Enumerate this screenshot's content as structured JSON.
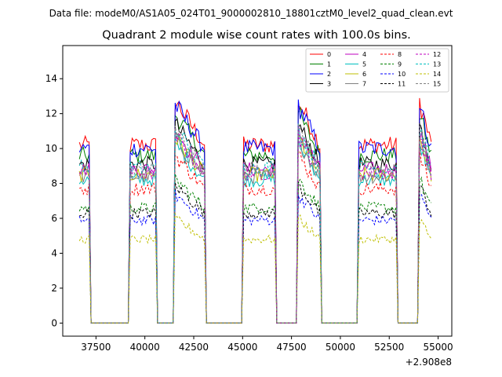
{
  "suptitle": "Data file: modeM0/AS1A05_024T01_9000002810_18801cztM0_level2_quad_clean.evt",
  "chart_data": {
    "type": "line",
    "title": "Quadrant 2 module wise count rates with 100.0s bins.",
    "xlabel": "",
    "ylabel": "",
    "x_offset_label": "+2.908e8",
    "xlim": [
      35800,
      55700
    ],
    "ylim": [
      -0.75,
      15.9
    ],
    "xticks": [
      37500,
      40000,
      42500,
      45000,
      47500,
      50000,
      52500,
      55000
    ],
    "xtick_labels": [
      "37500",
      "40000",
      "42500",
      "45000",
      "47500",
      "50000",
      "52500",
      "55000"
    ],
    "yticks": [
      0,
      2,
      4,
      6,
      8,
      10,
      12,
      14
    ],
    "ytick_labels": [
      "0",
      "2",
      "4",
      "6",
      "8",
      "10",
      "12",
      "14"
    ],
    "legend_position": "top-right",
    "segments": [
      {
        "start": 36650,
        "end": 37150
      },
      {
        "start": 39250,
        "end": 40550
      },
      {
        "start": 41550,
        "end": 43050
      },
      {
        "start": 45050,
        "end": 46650
      },
      {
        "start": 47850,
        "end": 48950
      },
      {
        "start": 50950,
        "end": 52850
      },
      {
        "start": 54050,
        "end": 54650
      }
    ],
    "series": [
      {
        "name": "0",
        "color": "#ff0000",
        "dash": false,
        "level": 10.2
      },
      {
        "name": "1",
        "color": "#008000",
        "dash": false,
        "level": 9.6
      },
      {
        "name": "2",
        "color": "#0000ff",
        "dash": false,
        "level": 10.0
      },
      {
        "name": "3",
        "color": "#000000",
        "dash": false,
        "level": 9.1
      },
      {
        "name": "4",
        "color": "#bf00bf",
        "dash": false,
        "level": 8.8
      },
      {
        "name": "5",
        "color": "#00bfbf",
        "dash": false,
        "level": 8.2
      },
      {
        "name": "6",
        "color": "#bfbf00",
        "dash": false,
        "level": 8.5
      },
      {
        "name": "7",
        "color": "#808080",
        "dash": false,
        "level": 8.4
      },
      {
        "name": "8",
        "color": "#ff0000",
        "dash": true,
        "level": 7.7
      },
      {
        "name": "9",
        "color": "#008000",
        "dash": true,
        "level": 6.6
      },
      {
        "name": "10",
        "color": "#0000ff",
        "dash": true,
        "level": 5.9
      },
      {
        "name": "11",
        "color": "#000000",
        "dash": true,
        "level": 6.3
      },
      {
        "name": "12",
        "color": "#bf00bf",
        "dash": true,
        "level": 8.6
      },
      {
        "name": "13",
        "color": "#00bfbf",
        "dash": true,
        "level": 8.9
      },
      {
        "name": "14",
        "color": "#bfbf00",
        "dash": true,
        "level": 4.8
      },
      {
        "name": "15",
        "color": "#808080",
        "dash": true,
        "level": 8.8
      }
    ]
  }
}
